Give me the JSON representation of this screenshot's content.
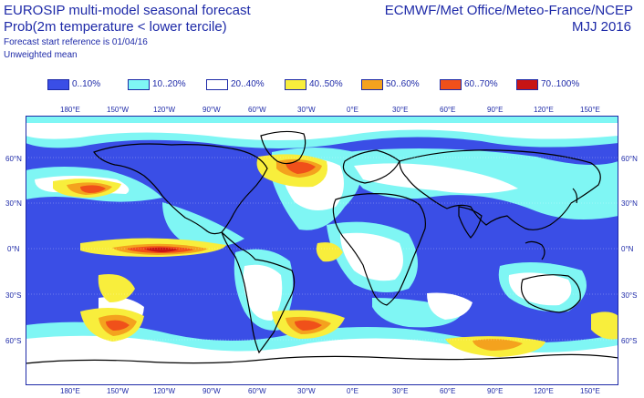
{
  "header": {
    "title_line1": "EUROSIP multi-model seasonal forecast",
    "title_line2": "Prob(2m temperature < lower tercile)",
    "start_ref": "Forecast start reference is 01/04/16",
    "mean_note": "Unweighted mean",
    "centres": "ECMWF/Met Office/Meteo-France/NCEP",
    "season": "MJJ 2016"
  },
  "legend": [
    {
      "label": "0..10%",
      "color": "#3a4ee6"
    },
    {
      "label": "10..20%",
      "color": "#7ff6f4"
    },
    {
      "label": "20..40%",
      "color": "#ffffff"
    },
    {
      "label": "40..50%",
      "color": "#f8ee3c"
    },
    {
      "label": "50..60%",
      "color": "#f4a21e"
    },
    {
      "label": "60..70%",
      "color": "#f0501a"
    },
    {
      "label": "70..100%",
      "color": "#c81414"
    }
  ],
  "axes": {
    "lon_labels": [
      "180°E",
      "150°W",
      "120°W",
      "90°W",
      "60°W",
      "30°W",
      "0°E",
      "30°E",
      "60°E",
      "90°E",
      "120°E",
      "150°E"
    ],
    "lat_labels_left": [
      "60°N",
      "30°N",
      "0°N",
      "30°S",
      "60°S"
    ],
    "lat_labels_right": [
      "60°N",
      "30°N",
      "0°N",
      "30°S",
      "60°S"
    ]
  }
}
